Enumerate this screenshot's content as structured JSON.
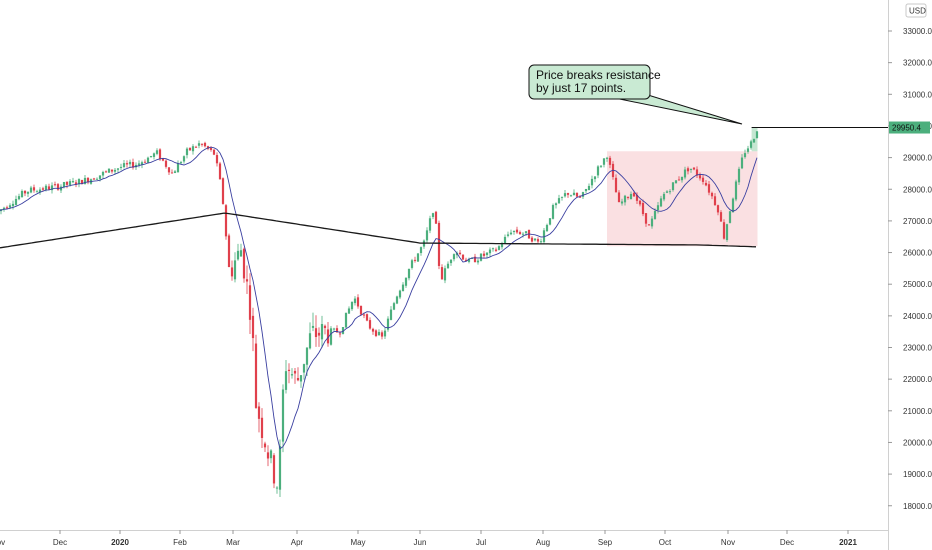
{
  "chart_data": {
    "type": "candlestick",
    "currency": "USD",
    "y_ticks": [
      "33000.0",
      "32000.0",
      "31000.0",
      "30000.0",
      "29000.0",
      "28000.0",
      "27000.0",
      "26000.0",
      "25000.0",
      "24000.0",
      "23000.0",
      "22000.0",
      "21000.0",
      "20000.0",
      "19000.0",
      "18000.0"
    ],
    "ylim": [
      17500,
      33800
    ],
    "x_ticks": [
      "Nov",
      "Dec",
      "2020",
      "Feb",
      "Mar",
      "Apr",
      "May",
      "Jun",
      "Jul",
      "Aug",
      "Sep",
      "Oct",
      "Nov",
      "Dec",
      "2021"
    ],
    "last_price_label": "29950.4",
    "last_price": 29950.4,
    "callout_lines": [
      "Price breaks resistance",
      "by just 17 points."
    ],
    "candles_anchor_close": [
      [
        "2019-11-01",
        27300
      ],
      [
        "2019-11-15",
        27950
      ],
      [
        "2019-12-01",
        28100
      ],
      [
        "2019-12-15",
        28300
      ],
      [
        "2020-01-01",
        28700
      ],
      [
        "2020-01-10",
        28800
      ],
      [
        "2020-01-20",
        29150
      ],
      [
        "2020-01-28",
        28500
      ],
      [
        "2020-02-05",
        29200
      ],
      [
        "2020-02-12",
        29450
      ],
      [
        "2020-02-20",
        29100
      ],
      [
        "2020-02-24",
        27900
      ],
      [
        "2020-02-28",
        25400
      ],
      [
        "2020-03-05",
        26100
      ],
      [
        "2020-03-10",
        24000
      ],
      [
        "2020-03-12",
        21300
      ],
      [
        "2020-03-16",
        20200
      ],
      [
        "2020-03-20",
        19200
      ],
      [
        "2020-03-23",
        18590
      ],
      [
        "2020-03-26",
        22550
      ],
      [
        "2020-04-01",
        21900
      ],
      [
        "2020-04-08",
        23400
      ],
      [
        "2020-04-15",
        23500
      ],
      [
        "2020-04-22",
        23500
      ],
      [
        "2020-04-29",
        24600
      ],
      [
        "2020-05-06",
        23700
      ],
      [
        "2020-05-13",
        23300
      ],
      [
        "2020-05-20",
        24600
      ],
      [
        "2020-05-27",
        25550
      ],
      [
        "2020-06-03",
        26300
      ],
      [
        "2020-06-08",
        27500
      ],
      [
        "2020-06-11",
        25100
      ],
      [
        "2020-06-18",
        26100
      ],
      [
        "2020-06-25",
        25700
      ],
      [
        "2020-07-02",
        25900
      ],
      [
        "2020-07-09",
        26100
      ],
      [
        "2020-07-16",
        26700
      ],
      [
        "2020-07-23",
        26600
      ],
      [
        "2020-07-30",
        26300
      ],
      [
        "2020-08-06",
        27400
      ],
      [
        "2020-08-13",
        27900
      ],
      [
        "2020-08-20",
        27700
      ],
      [
        "2020-08-27",
        28500
      ],
      [
        "2020-09-02",
        29100
      ],
      [
        "2020-09-08",
        27500
      ],
      [
        "2020-09-15",
        27950
      ],
      [
        "2020-09-23",
        26800
      ],
      [
        "2020-09-30",
        27800
      ],
      [
        "2020-10-07",
        28300
      ],
      [
        "2020-10-13",
        28700
      ],
      [
        "2020-10-20",
        28300
      ],
      [
        "2020-10-27",
        27400
      ],
      [
        "2020-10-30",
        26500
      ],
      [
        "2020-11-04",
        27900
      ],
      [
        "2020-11-09",
        29150
      ],
      [
        "2020-11-13",
        29480
      ],
      [
        "2020-11-16",
        29950
      ]
    ],
    "series": [
      {
        "name": "",
        "color": "#3a3fa0"
      },
      {
        "name": "",
        "color": "#1a1a1a"
      }
    ],
    "resistance_zone": {
      "from": "2020-09-02",
      "to": "2020-11-16",
      "low": 26200,
      "high": 29200,
      "color": "#f5c6cb"
    },
    "breakout_zone": {
      "from": "2020-11-13",
      "to": "2020-11-16",
      "low": 29200,
      "high": 29950,
      "color": "#b7e1c7"
    },
    "up_color": "#4caf7d",
    "down_color": "#e0404c"
  }
}
